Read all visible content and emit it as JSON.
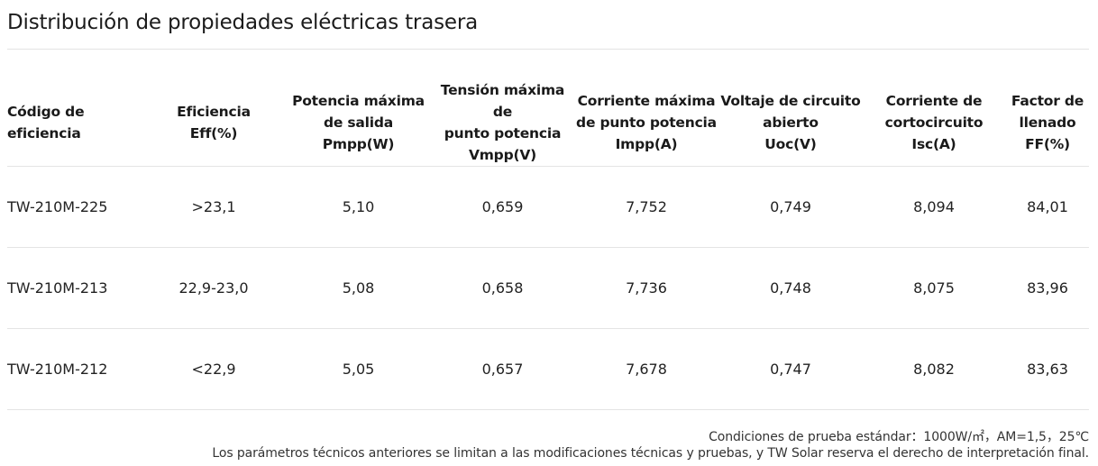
{
  "title": "Distribución de propiedades eléctricas trasera",
  "table": {
    "headers": [
      [
        "Código de",
        "eficiencia"
      ],
      [
        "Eficiencia",
        "Eff(%)"
      ],
      [
        "Potencia máxima",
        "de salida",
        "Pmpp(W)"
      ],
      [
        "Tensión máxima de",
        "punto potencia",
        "Vmpp(V)"
      ],
      [
        "Corriente máxima",
        "de punto potencia",
        "Impp(A)"
      ],
      [
        "Voltaje de circuito",
        "abierto",
        "Uoc(V)"
      ],
      [
        "Corriente de",
        "cortocircuito",
        "Isc(A)"
      ],
      [
        "Factor de",
        "llenado",
        "FF(%)"
      ]
    ],
    "rows": [
      [
        "TW-210M-225",
        ">23,1",
        "5,10",
        "0,659",
        "7,752",
        "0,749",
        "8,094",
        "84,01"
      ],
      [
        "TW-210M-213",
        "22,9-23,0",
        "5,08",
        "0,658",
        "7,736",
        "0,748",
        "8,075",
        "83,96"
      ],
      [
        "TW-210M-212",
        "<22,9",
        "5,05",
        "0,657",
        "7,678",
        "0,747",
        "8,082",
        "83,63"
      ]
    ]
  },
  "footnotes": {
    "conditions": "Condiciones de prueba estándar：1000W/㎡，AM=1,5，25℃",
    "disclaimer": "Los parámetros técnicos anteriores se limitan a las modificaciones técnicas y pruebas, y TW Solar reserva el derecho de interpretación final."
  }
}
